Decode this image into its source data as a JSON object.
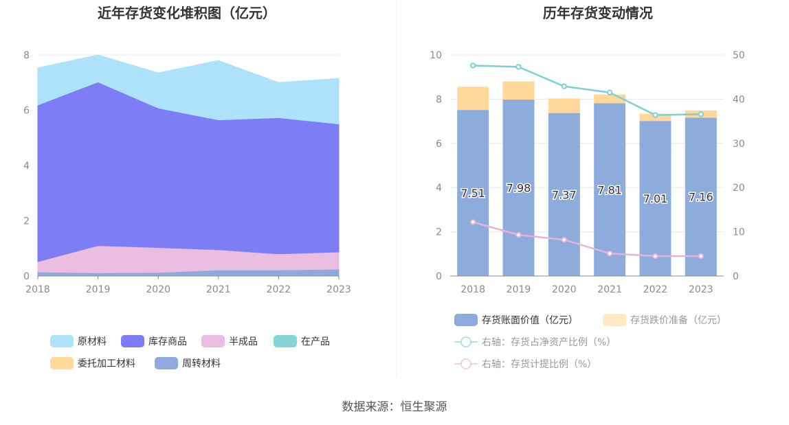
{
  "source_text": "数据来源：恒生聚源",
  "chart_data": [
    {
      "type": "area",
      "stacked": true,
      "title": "近年存货变化堆积图（亿元）",
      "categories": [
        "2018",
        "2019",
        "2020",
        "2021",
        "2022",
        "2023"
      ],
      "ylim": [
        0,
        8
      ],
      "yticks": [
        "0",
        "2",
        "4",
        "6",
        "8"
      ],
      "grid": true,
      "legend_position": "bottom",
      "series": [
        {
          "name": "周转材料",
          "color": "#8fa8dd",
          "values": [
            0.15,
            0.12,
            0.13,
            0.22,
            0.22,
            0.25
          ]
        },
        {
          "name": "委托加工材料",
          "color": "#ffd89a",
          "values": [
            0.0,
            0.0,
            0.0,
            0.0,
            0.0,
            0.0
          ]
        },
        {
          "name": "在产品",
          "color": "#86d4da",
          "values": [
            0.0,
            0.0,
            0.0,
            0.0,
            0.0,
            0.0
          ]
        },
        {
          "name": "半成品",
          "color": "#ebbde0",
          "values": [
            0.37,
            0.98,
            0.9,
            0.73,
            0.58,
            0.62
          ]
        },
        {
          "name": "库存商品",
          "color": "#7d7ef5",
          "values": [
            5.67,
            5.92,
            5.05,
            4.7,
            4.93,
            4.63
          ]
        },
        {
          "name": "原材料",
          "color": "#aee2fb",
          "values": [
            1.34,
            0.98,
            1.27,
            2.15,
            1.27,
            1.65
          ]
        }
      ],
      "legend_order": [
        "原材料",
        "库存商品",
        "半成品",
        "在产品",
        "委托加工材料",
        "周转材料"
      ]
    },
    {
      "type": "bar+line",
      "title": "历年存货变动情况",
      "categories": [
        "2018",
        "2019",
        "2020",
        "2021",
        "2022",
        "2023"
      ],
      "ylim_left": [
        0,
        10
      ],
      "yticks_left": [
        "0",
        "2",
        "4",
        "6",
        "8",
        "10"
      ],
      "ylim_right": [
        0,
        50
      ],
      "yticks_right": [
        "0",
        "10",
        "20",
        "30",
        "40",
        "50"
      ],
      "grid": true,
      "legend_position": "bottom",
      "bars": [
        {
          "name": "存货账面价值（亿元）",
          "color": "#8eacdb",
          "values": [
            7.51,
            7.98,
            7.37,
            7.81,
            7.01,
            7.16
          ],
          "labels": [
            "7.51",
            "7.98",
            "7.37",
            "7.81",
            "7.01",
            "7.16"
          ]
        },
        {
          "name": "存货跌价准备（亿元）",
          "color": "#ffd899",
          "values": [
            1.05,
            0.82,
            0.66,
            0.4,
            0.33,
            0.33
          ]
        }
      ],
      "lines": [
        {
          "name": "右轴：存货占净资产比例（%）",
          "color": "#7ecfd4",
          "axis": "right",
          "values": [
            47.6,
            47.3,
            42.9,
            41.5,
            36.4,
            36.6
          ]
        },
        {
          "name": "右轴：存货计提比例（%）",
          "color": "#e8b2d8",
          "axis": "right",
          "values": [
            12.2,
            9.3,
            8.2,
            5.1,
            4.5,
            4.5
          ]
        }
      ]
    }
  ]
}
